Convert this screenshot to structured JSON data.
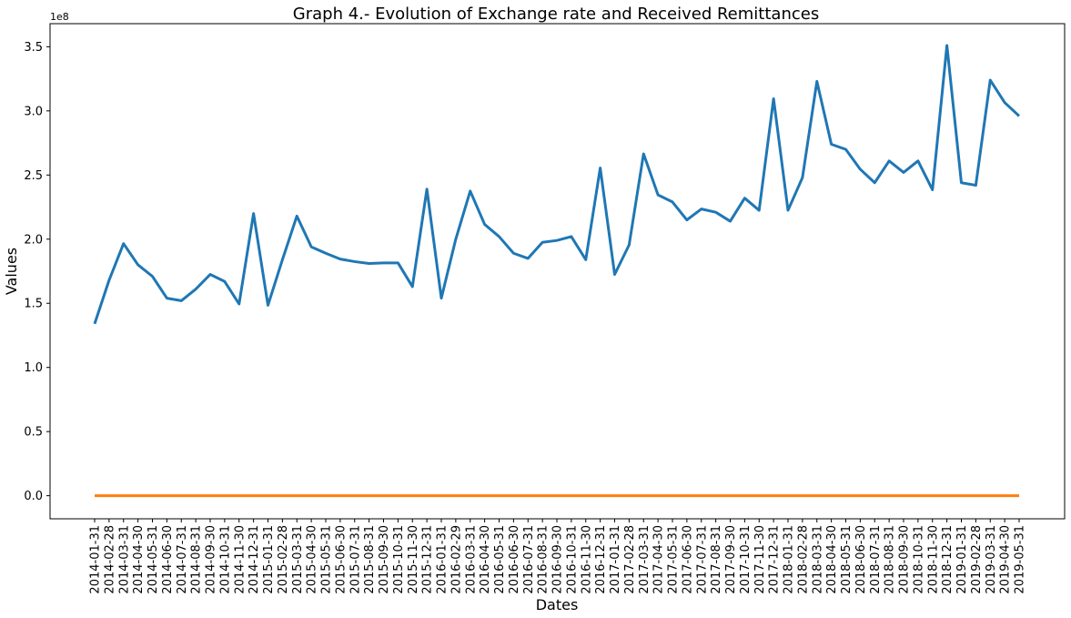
{
  "chart_data": {
    "type": "line",
    "title": "Graph 4.- Evolution of Exchange rate and Received Remittances",
    "xlabel": "Dates",
    "ylabel": "Values",
    "y_offset_label": "1e8",
    "ylim": [
      -0.18,
      3.68
    ],
    "yticks": [
      0.0,
      0.5,
      1.0,
      1.5,
      2.0,
      2.5,
      3.0,
      3.5
    ],
    "ytick_labels": [
      "0.0",
      "0.5",
      "1.0",
      "1.5",
      "2.0",
      "2.5",
      "3.0",
      "3.5"
    ],
    "grid": false,
    "legend": "none",
    "x": [
      "2014-01-31",
      "2014-02-28",
      "2014-03-31",
      "2014-04-30",
      "2014-05-31",
      "2014-06-30",
      "2014-07-31",
      "2014-08-31",
      "2014-09-30",
      "2014-10-31",
      "2014-11-30",
      "2014-12-31",
      "2015-01-31",
      "2015-02-28",
      "2015-03-31",
      "2015-04-30",
      "2015-05-31",
      "2015-06-30",
      "2015-07-31",
      "2015-08-31",
      "2015-09-30",
      "2015-10-31",
      "2015-11-30",
      "2015-12-31",
      "2016-01-31",
      "2016-02-29",
      "2016-03-31",
      "2016-04-30",
      "2016-05-31",
      "2016-06-30",
      "2016-07-31",
      "2016-08-31",
      "2016-09-30",
      "2016-10-31",
      "2016-11-30",
      "2016-12-31",
      "2017-01-31",
      "2017-02-28",
      "2017-03-31",
      "2017-04-30",
      "2017-05-31",
      "2017-06-30",
      "2017-07-31",
      "2017-08-31",
      "2017-09-30",
      "2017-10-31",
      "2017-11-30",
      "2017-12-31",
      "2018-01-31",
      "2018-02-28",
      "2018-03-31",
      "2018-04-30",
      "2018-05-31",
      "2018-06-30",
      "2018-07-31",
      "2018-08-31",
      "2018-09-30",
      "2018-10-31",
      "2018-11-30",
      "2018-12-31",
      "2019-01-31",
      "2019-02-28",
      "2019-03-31",
      "2019-04-30",
      "2019-05-31"
    ],
    "series": [
      {
        "color": "#1f77b4",
        "values": [
          1.34,
          1.68,
          1.965,
          1.8,
          1.71,
          1.54,
          1.52,
          1.61,
          1.725,
          1.67,
          1.495,
          2.2,
          1.485,
          1.84,
          2.18,
          1.94,
          1.89,
          1.845,
          1.825,
          1.81,
          1.815,
          1.815,
          1.63,
          2.39,
          1.54,
          2.0,
          2.375,
          2.115,
          2.02,
          1.89,
          1.85,
          1.975,
          1.99,
          2.02,
          1.84,
          2.555,
          1.725,
          1.955,
          2.665,
          2.345,
          2.29,
          2.15,
          2.235,
          2.21,
          2.14,
          2.32,
          2.225,
          3.095,
          2.225,
          2.48,
          3.23,
          2.74,
          2.7,
          2.545,
          2.44,
          2.61,
          2.52,
          2.61,
          2.385,
          3.51,
          2.44,
          2.42,
          3.24,
          3.065,
          2.96
        ]
      },
      {
        "color": "#ff7f0e",
        "values": [
          0,
          0,
          0,
          0,
          0,
          0,
          0,
          0,
          0,
          0,
          0,
          0,
          0,
          0,
          0,
          0,
          0,
          0,
          0,
          0,
          0,
          0,
          0,
          0,
          0,
          0,
          0,
          0,
          0,
          0,
          0,
          0,
          0,
          0,
          0,
          0,
          0,
          0,
          0,
          0,
          0,
          0,
          0,
          0,
          0,
          0,
          0,
          0,
          0,
          0,
          0,
          0,
          0,
          0,
          0,
          0,
          0,
          0,
          0,
          0,
          0,
          0,
          0,
          0,
          0
        ]
      }
    ]
  }
}
